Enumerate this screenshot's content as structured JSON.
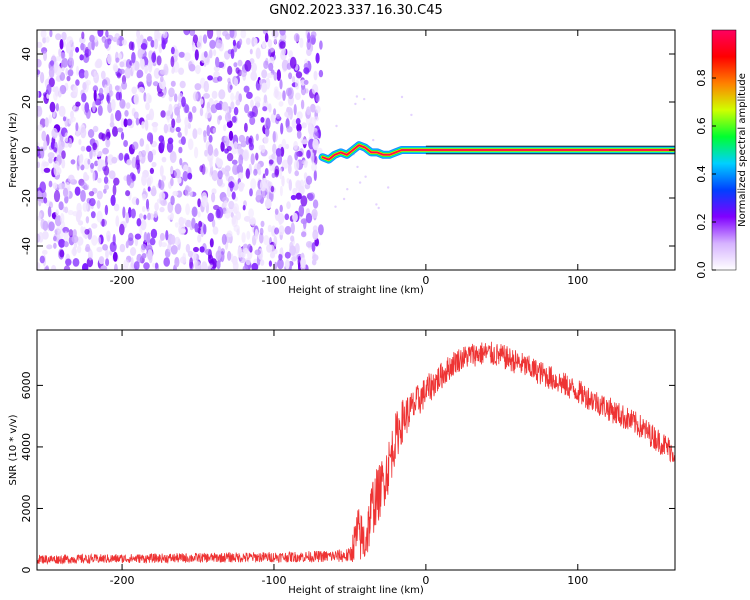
{
  "figure": {
    "title": "GN02.2023.337.16.30.C45"
  },
  "chart_data": [
    {
      "type": "heatmap",
      "title": "",
      "xlabel": "Height of straight line (km)",
      "ylabel": "Frequency (Hz)",
      "xlim": [
        -256,
        164
      ],
      "ylim": [
        -50,
        50
      ],
      "xticks": [
        -200,
        -100,
        0,
        100
      ],
      "yticks": [
        -40,
        -20,
        0,
        20,
        40
      ],
      "noise_region": {
        "x": [
          -256,
          -69
        ],
        "y": [
          -50,
          50
        ]
      },
      "signal_band": {
        "x_start": -68,
        "x_end": 164,
        "center_hz": 0
      },
      "ridge_trace": [
        [
          -68,
          -3
        ],
        [
          -64,
          -4
        ],
        [
          -60,
          -2
        ],
        [
          -56,
          -1
        ],
        [
          -52,
          -2
        ],
        [
          -48,
          0
        ],
        [
          -44,
          2
        ],
        [
          -40,
          1
        ],
        [
          -36,
          -1
        ],
        [
          -32,
          -1
        ],
        [
          -28,
          -2
        ],
        [
          -24,
          -2
        ],
        [
          -20,
          -1
        ],
        [
          -16,
          0
        ],
        [
          -12,
          0
        ],
        [
          -8,
          0
        ],
        [
          -4,
          0
        ],
        [
          0,
          0
        ],
        [
          164,
          0
        ]
      ],
      "colorbar": {
        "label": "Normalized spectral amplitude",
        "ticks": [
          0.0,
          0.2,
          0.4,
          0.6,
          0.8
        ],
        "range": [
          0,
          1
        ],
        "colormap": [
          "#ffffff",
          "#d6b3ff",
          "#8000ff",
          "#0040ff",
          "#00d0ff",
          "#00ff30",
          "#d0ff00",
          "#ff8000",
          "#ff0000",
          "#ff0060"
        ]
      }
    },
    {
      "type": "line",
      "title": "",
      "xlabel": "Height of straight line (km)",
      "ylabel": "SNR (10 * v/v)",
      "xlim": [
        -256,
        164
      ],
      "ylim": [
        0,
        7800
      ],
      "xticks": [
        -200,
        -100,
        0,
        100
      ],
      "yticks": [
        0,
        2000,
        4000,
        6000
      ],
      "line_color": "#ee3333",
      "series": [
        {
          "x": [
            -256,
            -240,
            -220,
            -200,
            -180,
            -160,
            -140,
            -120,
            -100,
            -80,
            -60,
            -50,
            -45,
            -40,
            -35,
            -30,
            -25,
            -20,
            -15,
            -10,
            -5,
            0,
            10,
            20,
            30,
            40,
            50,
            60,
            80,
            100,
            120,
            140,
            164
          ],
          "values": [
            350,
            350,
            360,
            370,
            380,
            390,
            400,
            410,
            420,
            430,
            450,
            470,
            1200,
            900,
            2100,
            2600,
            3300,
            4300,
            4900,
            5200,
            5500,
            5800,
            6300,
            6800,
            7000,
            7050,
            6950,
            6750,
            6300,
            5800,
            5250,
            4700,
            3800
          ],
          "spread": [
            150,
            150,
            150,
            150,
            150,
            160,
            160,
            170,
            170,
            180,
            200,
            250,
            900,
            800,
            1000,
            900,
            900,
            800,
            700,
            600,
            550,
            500,
            450,
            400,
            400,
            400,
            400,
            400,
            400,
            400,
            400,
            400,
            400
          ]
        }
      ]
    }
  ]
}
